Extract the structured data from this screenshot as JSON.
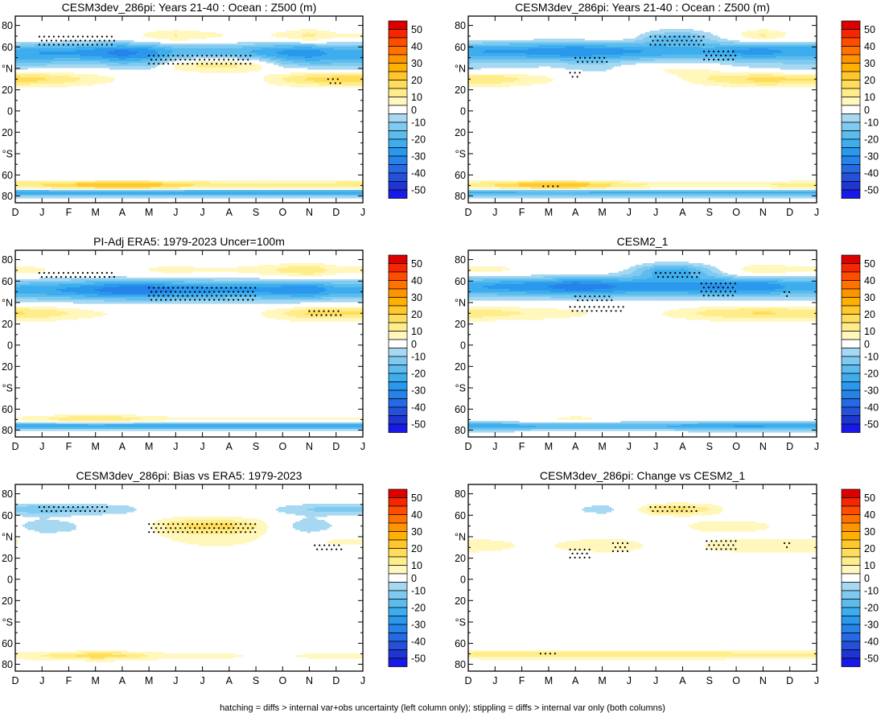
{
  "footer": "hatching = diffs > internal var+obs uncertainty (left column only); stippling = diffs > internal var only (both columns)",
  "colors": {
    "pos": [
      "#ffffff",
      "#fff7bb",
      "#ffec8b",
      "#ffdc5a",
      "#ffc72c",
      "#ffb000",
      "#ff9400",
      "#ff7200",
      "#ff4d00",
      "#f52700",
      "#dc0000"
    ],
    "neg": [
      "#ffffff",
      "#a6d8f2",
      "#7fcaf0",
      "#5cbcee",
      "#3daded",
      "#2a98ec",
      "#2583ea",
      "#2569e4",
      "#2450dc",
      "#1e35d2",
      "#1818e8"
    ],
    "contour_levels": [
      0,
      5,
      10,
      15,
      20,
      25,
      30,
      35,
      40,
      45,
      50
    ]
  },
  "chart_data": [
    {
      "type": "heatmap",
      "title": "CESM3dev_286pi: Years 21-40 : Ocean : Z500 (m)",
      "x_ticks": [
        "D",
        "J",
        "F",
        "M",
        "A",
        "M",
        "J",
        "J",
        "A",
        "S",
        "O",
        "N",
        "D",
        "J"
      ],
      "y_ticks": [
        "80",
        "60",
        "°N",
        "20",
        "0",
        "20",
        "°S",
        "60",
        "80"
      ],
      "colorbar_labels": [
        "50",
        "40",
        "30",
        "20",
        "10",
        "0",
        "-10",
        "-20",
        "-30",
        "-40",
        "-50"
      ],
      "field": [
        {
          "lat": 70,
          "amp": [
            6,
            5,
            3,
            3,
            4,
            8,
            12,
            8,
            6,
            5,
            8,
            14,
            7
          ],
          "sig": 5
        },
        {
          "lat": 55,
          "amp": [
            -22,
            -25,
            -25,
            -28,
            -32,
            -28,
            -20,
            -18,
            -18,
            -22,
            -26,
            -28,
            -22
          ],
          "sig": 7
        },
        {
          "lat": 44,
          "amp": [
            -8,
            -5,
            -3,
            -2,
            -5,
            -4,
            10,
            16,
            16,
            12,
            -2,
            -6,
            -8
          ],
          "sig": 5
        },
        {
          "lat": 30,
          "amp": [
            18,
            16,
            12,
            8,
            4,
            2,
            0,
            0,
            0,
            3,
            10,
            16,
            18
          ],
          "sig": 5
        },
        {
          "lat": -70,
          "amp": [
            14,
            16,
            20,
            24,
            26,
            24,
            18,
            15,
            12,
            12,
            12,
            12,
            14
          ],
          "sig": 3
        },
        {
          "lat": -77,
          "amp": [
            -25,
            -25,
            -25,
            -25,
            -25,
            -25,
            -25,
            -25,
            -25,
            -25,
            -25,
            -25,
            -25
          ],
          "sig": 2.5
        }
      ],
      "stipple": [
        {
          "x0": 0.9,
          "x1": 3.7,
          "lat0": 62,
          "lat1": 70
        },
        {
          "x0": 5.0,
          "x1": 8.8,
          "lat0": 42,
          "lat1": 52
        },
        {
          "x0": 11.7,
          "x1": 12.2,
          "lat0": 24,
          "lat1": 30
        }
      ]
    },
    {
      "type": "heatmap",
      "title": "CESM3dev_286pi: Years 21-40 : Ocean : Z500 (m)",
      "x_ticks": [
        "D",
        "J",
        "F",
        "M",
        "A",
        "M",
        "J",
        "J",
        "A",
        "S",
        "O",
        "N",
        "D",
        "J"
      ],
      "y_ticks": [
        "80",
        "60",
        "°N",
        "20",
        "0",
        "20",
        "°S",
        "60",
        "80"
      ],
      "colorbar_labels": [
        "50",
        "40",
        "30",
        "20",
        "10",
        "0",
        "-10",
        "-20",
        "-30",
        "-40",
        "-50"
      ],
      "field": [
        {
          "lat": 70,
          "amp": [
            5,
            4,
            3,
            2,
            3,
            4,
            2,
            -10,
            -14,
            -5,
            6,
            14,
            6
          ],
          "sig": 5
        },
        {
          "lat": 56,
          "amp": [
            -24,
            -26,
            -26,
            -28,
            -30,
            -28,
            -26,
            -24,
            -22,
            -22,
            -26,
            -28,
            -24
          ],
          "sig": 7
        },
        {
          "lat": 40,
          "amp": [
            -6,
            -4,
            -3,
            -2,
            -4,
            -5,
            2,
            6,
            6,
            4,
            -2,
            -4,
            -6
          ],
          "sig": 5
        },
        {
          "lat": 30,
          "amp": [
            16,
            14,
            10,
            6,
            2,
            0,
            0,
            0,
            4,
            10,
            14,
            18,
            16
          ],
          "sig": 5
        },
        {
          "lat": -70,
          "amp": [
            12,
            16,
            22,
            26,
            24,
            18,
            12,
            10,
            10,
            10,
            10,
            10,
            12
          ],
          "sig": 3
        },
        {
          "lat": -77,
          "amp": [
            -22,
            -22,
            -22,
            -22,
            -22,
            -22,
            -22,
            -22,
            -22,
            -22,
            -22,
            -22,
            -22
          ],
          "sig": 2.5
        }
      ],
      "stipple": [
        {
          "x0": 6.8,
          "x1": 8.8,
          "lat0": 62,
          "lat1": 70
        },
        {
          "x0": 4.0,
          "x1": 5.2,
          "lat0": 46,
          "lat1": 50
        },
        {
          "x0": 8.8,
          "x1": 10.0,
          "lat0": 46,
          "lat1": 56
        },
        {
          "x0": 3.8,
          "x1": 4.2,
          "lat0": 30,
          "lat1": 36
        },
        {
          "x0": 2.8,
          "x1": 3.5,
          "lat0": -74,
          "lat1": -71
        }
      ]
    },
    {
      "type": "heatmap",
      "title": "PI-Adj ERA5: 1979-2023 Uncer=100m",
      "x_ticks": [
        "D",
        "J",
        "F",
        "M",
        "A",
        "M",
        "J",
        "J",
        "A",
        "S",
        "O",
        "N",
        "D",
        "J"
      ],
      "y_ticks": [
        "80",
        "60",
        "°N",
        "20",
        "0",
        "20",
        "°S",
        "60",
        "80"
      ],
      "colorbar_labels": [
        "50",
        "40",
        "30",
        "20",
        "10",
        "0",
        "-10",
        "-20",
        "-30",
        "-40",
        "-50"
      ],
      "field": [
        {
          "lat": 70,
          "amp": [
            8,
            6,
            4,
            3,
            4,
            6,
            8,
            6,
            6,
            8,
            12,
            16,
            8
          ],
          "sig": 5
        },
        {
          "lat": 52,
          "amp": [
            -22,
            -24,
            -26,
            -30,
            -34,
            -34,
            -30,
            -28,
            -26,
            -26,
            -28,
            -30,
            -22
          ],
          "sig": 7
        },
        {
          "lat": 30,
          "amp": [
            16,
            14,
            10,
            6,
            4,
            2,
            0,
            0,
            0,
            4,
            10,
            16,
            16
          ],
          "sig": 5
        },
        {
          "lat": -70,
          "amp": [
            6,
            10,
            14,
            16,
            14,
            10,
            6,
            6,
            6,
            6,
            6,
            6,
            6
          ],
          "sig": 3
        },
        {
          "lat": -76,
          "amp": [
            -25,
            -25,
            -25,
            -25,
            -25,
            -25,
            -25,
            -25,
            -25,
            -25,
            -25,
            -25,
            -25
          ],
          "sig": 2.5
        }
      ],
      "stipple": [
        {
          "x0": 0.9,
          "x1": 3.7,
          "lat0": 62,
          "lat1": 68
        },
        {
          "x0": 5.0,
          "x1": 9.0,
          "lat0": 40,
          "lat1": 54
        },
        {
          "x0": 11.0,
          "x1": 12.2,
          "lat0": 28,
          "lat1": 32
        }
      ]
    },
    {
      "type": "heatmap",
      "title": "CESM2_1",
      "x_ticks": [
        "D",
        "J",
        "F",
        "M",
        "A",
        "M",
        "J",
        "J",
        "A",
        "S",
        "O",
        "N",
        "D",
        "J"
      ],
      "y_ticks": [
        "80",
        "60",
        "°N",
        "20",
        "0",
        "20",
        "°S",
        "60",
        "80"
      ],
      "colorbar_labels": [
        "50",
        "40",
        "30",
        "20",
        "10",
        "0",
        "-10",
        "-20",
        "-30",
        "-40",
        "-50"
      ],
      "field": [
        {
          "lat": 70,
          "amp": [
            8,
            8,
            6,
            4,
            4,
            4,
            -4,
            -18,
            -20,
            -8,
            6,
            12,
            8
          ],
          "sig": 5
        },
        {
          "lat": 55,
          "amp": [
            -24,
            -26,
            -28,
            -30,
            -34,
            -32,
            -28,
            -28,
            -28,
            -30,
            -30,
            -30,
            -24
          ],
          "sig": 7
        },
        {
          "lat": 30,
          "amp": [
            14,
            12,
            10,
            8,
            6,
            4,
            2,
            4,
            8,
            12,
            14,
            16,
            14
          ],
          "sig": 5
        },
        {
          "lat": -70,
          "amp": [
            2,
            4,
            6,
            6,
            8,
            6,
            4,
            4,
            4,
            4,
            4,
            4,
            2
          ],
          "sig": 3
        },
        {
          "lat": -76,
          "amp": [
            -24,
            -24,
            -22,
            -20,
            -20,
            -20,
            -20,
            -20,
            -22,
            -24,
            -26,
            -26,
            -24
          ],
          "sig": 3
        }
      ],
      "stipple": [
        {
          "x0": 7.0,
          "x1": 8.7,
          "lat0": 62,
          "lat1": 68
        },
        {
          "x0": 4.0,
          "x1": 5.4,
          "lat0": 42,
          "lat1": 46
        },
        {
          "x0": 3.8,
          "x1": 5.8,
          "lat0": 32,
          "lat1": 36
        },
        {
          "x0": 8.7,
          "x1": 10.0,
          "lat0": 46,
          "lat1": 58
        },
        {
          "x0": 11.8,
          "x1": 12.0,
          "lat0": 46,
          "lat1": 50
        }
      ]
    },
    {
      "type": "heatmap",
      "title": "CESM3dev_286pi: Bias vs ERA5: 1979-2023",
      "x_ticks": [
        "D",
        "J",
        "F",
        "M",
        "A",
        "M",
        "J",
        "J",
        "A",
        "S",
        "O",
        "N",
        "D",
        "J"
      ],
      "y_ticks": [
        "80",
        "60",
        "°N",
        "20",
        "0",
        "20",
        "°S",
        "60",
        "80"
      ],
      "colorbar_labels": [
        "50",
        "40",
        "30",
        "20",
        "10",
        "0",
        "-10",
        "-20",
        "-30",
        "-40",
        "-50"
      ],
      "field": [
        {
          "lat": 66,
          "amp": [
            -12,
            -14,
            -12,
            -10,
            -8,
            -2,
            0,
            0,
            0,
            -2,
            -6,
            -10,
            -12
          ],
          "sig": 4
        },
        {
          "lat": 50,
          "amp": [
            -4,
            -8,
            -6,
            -2,
            0,
            4,
            14,
            16,
            16,
            10,
            -2,
            -10,
            -4
          ],
          "sig": 6
        },
        {
          "lat": 36,
          "amp": [
            6,
            0,
            -2,
            0,
            0,
            2,
            4,
            6,
            6,
            4,
            2,
            4,
            6
          ],
          "sig": 6
        },
        {
          "lat": -72,
          "amp": [
            8,
            10,
            14,
            18,
            16,
            10,
            6,
            6,
            6,
            4,
            4,
            6,
            8
          ],
          "sig": 3
        }
      ],
      "stipple": [
        {
          "x0": 0.9,
          "x1": 3.5,
          "lat0": 62,
          "lat1": 68
        },
        {
          "x0": 5.0,
          "x1": 9.0,
          "lat0": 44,
          "lat1": 52
        },
        {
          "x0": 11.2,
          "x1": 12.2,
          "lat0": 28,
          "lat1": 32
        }
      ]
    },
    {
      "type": "heatmap",
      "title": "CESM3dev_286pi: Change vs CESM2_1",
      "x_ticks": [
        "D",
        "J",
        "F",
        "M",
        "A",
        "M",
        "J",
        "J",
        "A",
        "S",
        "O",
        "N",
        "D",
        "J"
      ],
      "y_ticks": [
        "80",
        "60",
        "°N",
        "20",
        "0",
        "20",
        "°S",
        "60",
        "80"
      ],
      "colorbar_labels": [
        "50",
        "40",
        "30",
        "20",
        "10",
        "0",
        "-10",
        "-20",
        "-30",
        "-40",
        "-50"
      ],
      "field": [
        {
          "lat": 66,
          "amp": [
            -4,
            -4,
            -2,
            0,
            -4,
            -8,
            0,
            14,
            16,
            10,
            0,
            -2,
            -4
          ],
          "sig": 4
        },
        {
          "lat": 50,
          "amp": [
            0,
            0,
            -2,
            0,
            0,
            2,
            0,
            0,
            4,
            8,
            8,
            6,
            0
          ],
          "sig": 5
        },
        {
          "lat": 32,
          "amp": [
            10,
            8,
            4,
            4,
            8,
            10,
            8,
            2,
            0,
            6,
            10,
            10,
            10
          ],
          "sig": 5
        },
        {
          "lat": -71,
          "amp": [
            12,
            14,
            14,
            14,
            14,
            14,
            14,
            14,
            14,
            14,
            12,
            12,
            12
          ],
          "sig": 3
        }
      ],
      "stipple": [
        {
          "x0": 6.8,
          "x1": 8.6,
          "lat0": 62,
          "lat1": 68
        },
        {
          "x0": 3.8,
          "x1": 4.6,
          "lat0": 20,
          "lat1": 28
        },
        {
          "x0": 5.4,
          "x1": 6.0,
          "lat0": 26,
          "lat1": 34
        },
        {
          "x0": 8.9,
          "x1": 10.0,
          "lat0": 28,
          "lat1": 36
        },
        {
          "x0": 11.8,
          "x1": 12.0,
          "lat0": 28,
          "lat1": 34
        },
        {
          "x0": 2.7,
          "x1": 3.3,
          "lat0": -71,
          "lat1": -70
        }
      ]
    }
  ]
}
